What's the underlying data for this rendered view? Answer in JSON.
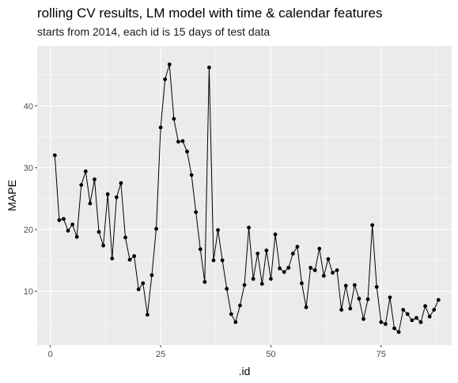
{
  "chart_data": {
    "type": "line",
    "title": "rolling CV results, LM model with time & calendar features",
    "subtitle": "starts from 2014, each id is 15 days of test data",
    "xlabel": ".id",
    "ylabel": "MAPE",
    "xlim": [
      -3,
      91
    ],
    "ylim": [
      1.3,
      49.7
    ],
    "x_ticks": [
      0,
      25,
      50,
      75
    ],
    "y_ticks": [
      10,
      20,
      30,
      40
    ],
    "grid": true,
    "background": "#ebebeb",
    "line_color": "#000000",
    "point_color": "#000000",
    "x": [
      1,
      2,
      3,
      4,
      5,
      6,
      7,
      8,
      9,
      10,
      11,
      12,
      13,
      14,
      15,
      16,
      17,
      18,
      19,
      20,
      21,
      22,
      23,
      24,
      25,
      26,
      27,
      28,
      29,
      30,
      31,
      32,
      33,
      34,
      35,
      36,
      37,
      38,
      39,
      40,
      41,
      42,
      43,
      44,
      45,
      46,
      47,
      48,
      49,
      50,
      51,
      52,
      53,
      54,
      55,
      56,
      57,
      58,
      59,
      60,
      61,
      62,
      63,
      64,
      65,
      66,
      67,
      68,
      69,
      70,
      71,
      72,
      73,
      74,
      75,
      76,
      77,
      78,
      79,
      80,
      81,
      82,
      83,
      84,
      85,
      86,
      87,
      88
    ],
    "values": [
      32.0,
      21.5,
      21.7,
      19.8,
      20.8,
      18.8,
      27.2,
      29.4,
      24.2,
      28.1,
      19.6,
      17.4,
      25.7,
      15.3,
      25.2,
      27.5,
      18.7,
      15.1,
      15.7,
      10.3,
      11.3,
      6.2,
      12.6,
      20.1,
      36.5,
      44.3,
      46.7,
      37.9,
      34.2,
      34.3,
      32.6,
      28.8,
      22.8,
      16.8,
      11.5,
      46.2,
      15.0,
      19.9,
      15.0,
      10.4,
      6.3,
      5.0,
      7.7,
      11.0,
      20.3,
      12.0,
      16.1,
      11.2,
      16.6,
      12.0,
      19.2,
      13.7,
      13.1,
      13.8,
      16.1,
      17.2,
      11.3,
      7.4,
      13.8,
      13.4,
      16.9,
      12.5,
      15.2,
      13.0,
      13.4,
      7.0,
      10.9,
      7.2,
      11.0,
      8.8,
      5.5,
      8.7,
      20.7,
      10.7,
      5.0,
      4.7,
      9.0,
      4.0,
      3.4,
      7.0,
      6.3,
      5.3,
      5.7,
      5.0,
      7.6,
      5.9,
      7.0,
      8.6
    ]
  }
}
